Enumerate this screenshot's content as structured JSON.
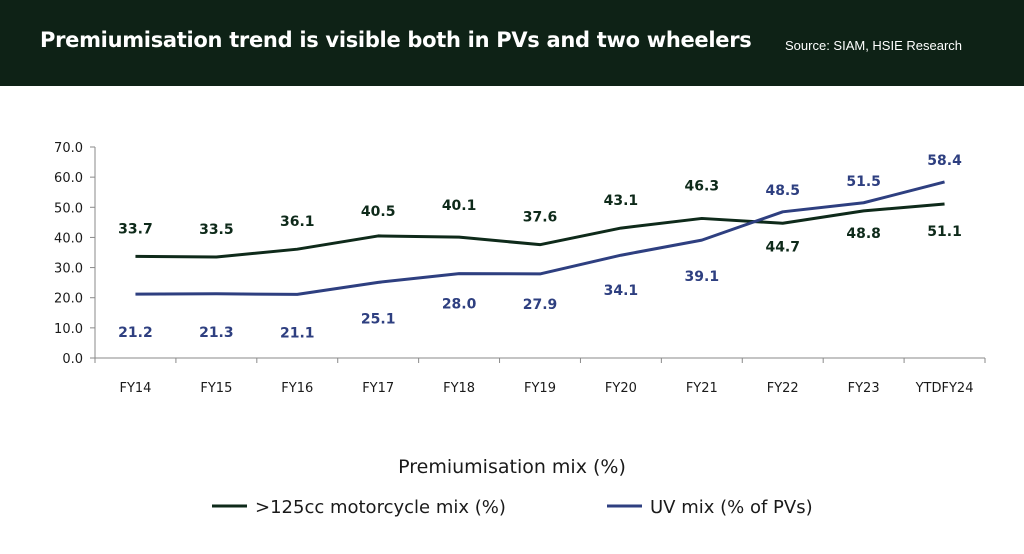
{
  "header": {
    "title": "Premiumisation trend is visible both in PVs and two wheelers",
    "source": "Source: SIAM, HSIE Research"
  },
  "colors": {
    "header_bg": "#0e2216",
    "motorcycle": "#0e2a1a",
    "uv": "#2e3f80"
  },
  "chart_data": {
    "type": "line",
    "title": "Premiumisation mix (%)",
    "categories": [
      "FY14",
      "FY15",
      "FY16",
      "FY17",
      "FY18",
      "FY19",
      "FY20",
      "FY21",
      "FY22",
      "FY23",
      "YTDFY24"
    ],
    "ylim": [
      0,
      70
    ],
    "yticks": [
      "0.0",
      "10.0",
      "20.0",
      "30.0",
      "40.0",
      "50.0",
      "60.0",
      "70.0"
    ],
    "grid": false,
    "legend_position": "bottom",
    "series": [
      {
        "name": ">125cc motorcycle mix (%)",
        "color": "#0e2a1a",
        "values": [
          33.7,
          33.5,
          36.1,
          40.5,
          40.1,
          37.6,
          43.1,
          46.3,
          44.7,
          48.8,
          51.1
        ],
        "labels": [
          "33.7",
          "33.5",
          "36.1",
          "40.5",
          "40.1",
          "37.6",
          "43.1",
          "46.3",
          "44.7",
          "48.8",
          "51.1"
        ]
      },
      {
        "name": "UV mix (% of PVs)",
        "color": "#2e3f80",
        "values": [
          21.2,
          21.3,
          21.1,
          25.1,
          28.0,
          27.9,
          34.1,
          39.1,
          48.5,
          51.5,
          58.4
        ],
        "labels": [
          "21.2",
          "21.3",
          "21.1",
          "25.1",
          "28.0",
          "27.9",
          "34.1",
          "39.1",
          "48.5",
          "51.5",
          "58.4"
        ]
      }
    ]
  }
}
